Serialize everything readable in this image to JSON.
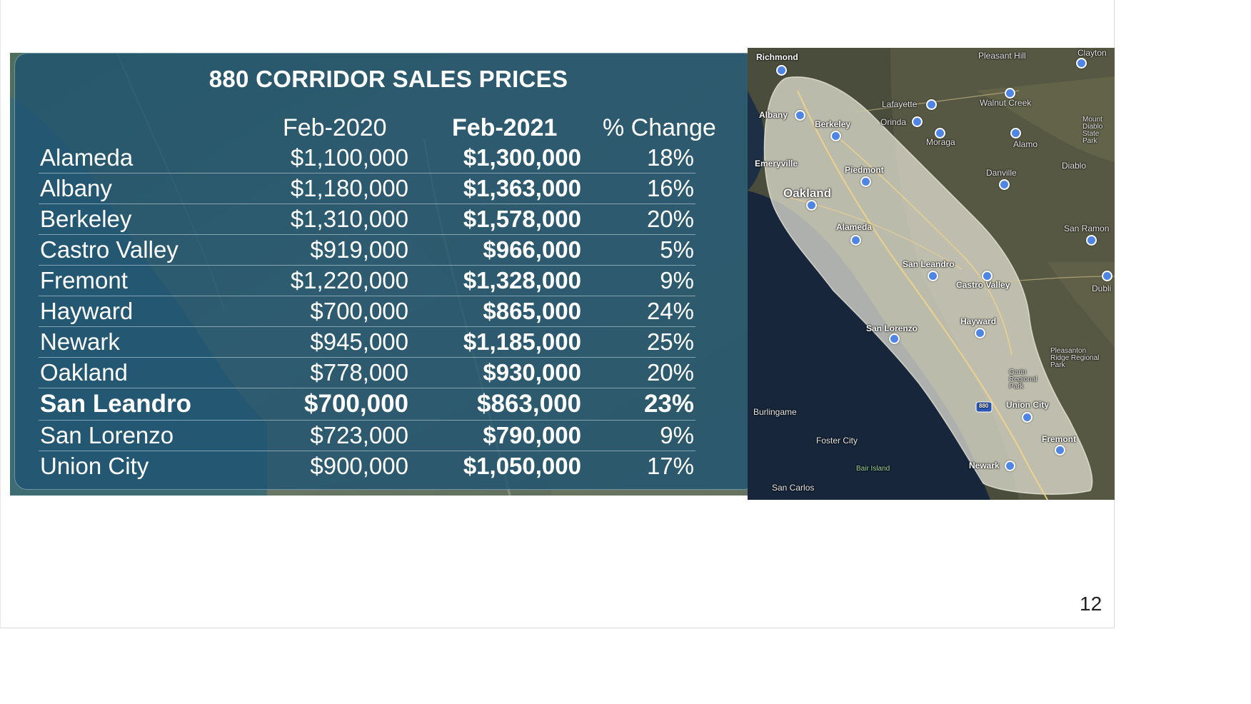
{
  "slide": {
    "title": "880 CORRIDOR SALES PRICES",
    "page_number": "12"
  },
  "table": {
    "headers": {
      "feb2020": "Feb-2020",
      "feb2021": "Feb-2021",
      "change": "% Change"
    },
    "rows": [
      {
        "city": "Alameda",
        "feb2020": "$1,100,000",
        "feb2021": "$1,300,000",
        "change": "18%",
        "highlight": false
      },
      {
        "city": "Albany",
        "feb2020": "$1,180,000",
        "feb2021": "$1,363,000",
        "change": "16%",
        "highlight": false
      },
      {
        "city": "Berkeley",
        "feb2020": "$1,310,000",
        "feb2021": "$1,578,000",
        "change": "20%",
        "highlight": false
      },
      {
        "city": "Castro Valley",
        "feb2020": "$919,000",
        "feb2021": "$966,000",
        "change": "5%",
        "highlight": false
      },
      {
        "city": "Fremont",
        "feb2020": "$1,220,000",
        "feb2021": "$1,328,000",
        "change": "9%",
        "highlight": false
      },
      {
        "city": "Hayward",
        "feb2020": "$700,000",
        "feb2021": "$865,000",
        "change": "24%",
        "highlight": false
      },
      {
        "city": "Newark",
        "feb2020": "$945,000",
        "feb2021": "$1,185,000",
        "change": "25%",
        "highlight": false
      },
      {
        "city": "Oakland",
        "feb2020": "$778,000",
        "feb2021": "$930,000",
        "change": "20%",
        "highlight": false
      },
      {
        "city": "San Leandro",
        "feb2020": "$700,000",
        "feb2021": "$863,000",
        "change": "23%",
        "highlight": true
      },
      {
        "city": "San Lorenzo",
        "feb2020": "$723,000",
        "feb2021": "$790,000",
        "change": "9%",
        "highlight": false
      },
      {
        "city": "Union City",
        "feb2020": "$900,000",
        "feb2021": "$1,050,000",
        "change": "17%",
        "highlight": false
      }
    ]
  },
  "map": {
    "labels": {
      "richmond": "Richmond",
      "pleasant_hill": "Pleasant Hill",
      "clayton": "Clayton",
      "walnut_creek": "Walnut Creek",
      "lafayette": "Lafayette",
      "orinda": "Orinda",
      "moraga": "Moraga",
      "alamo": "Alamo",
      "albany": "Albany",
      "berkeley": "Berkeley",
      "emeryville": "Emeryville",
      "piedmont": "Piedmont",
      "danville": "Danville",
      "diablo": "Diablo",
      "oakland": "Oakland",
      "alameda": "Alameda",
      "san_ramon": "San Ramon",
      "san_leandro": "San Leandro",
      "castro_valley": "Castro Valley",
      "dublin": "Dubli",
      "san_lorenzo": "San Lorenzo",
      "hayward": "Hayward",
      "pleasanton_ridge": "Pleasanton Ridge Regional Park",
      "garin": "Garin Regional Park",
      "burlingame": "Burlingame",
      "union_city": "Union City",
      "foster_city": "Foster City",
      "fremont": "Fremont",
      "newark": "Newark",
      "bair_island": "Bair Island",
      "san_carlos": "San Carlos",
      "mount_diablo": "Mount Diablo State Park",
      "shield_880": "880"
    }
  },
  "colors": {
    "panel": "#1e5270",
    "pin": "#4f86e6",
    "corridor": "#e8e6d8"
  }
}
